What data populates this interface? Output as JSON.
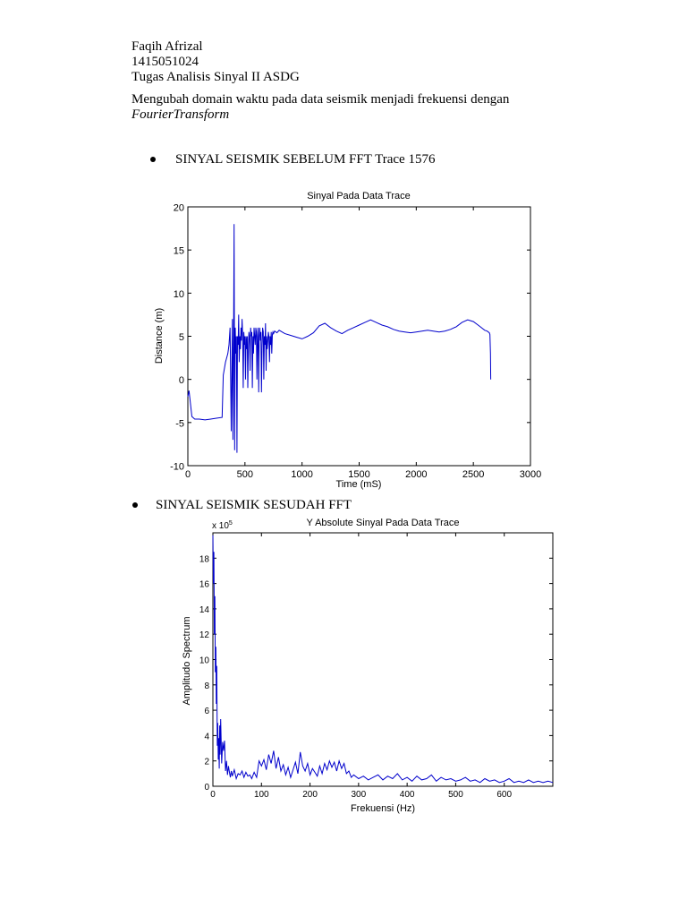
{
  "header": {
    "author": "Faqih Afrizal",
    "student_id": "1415051024",
    "course": "Tugas Analisis Sinyal II ASDG",
    "description": "Mengubah domain waktu pada data seismik menjadi frekuensi dengan",
    "method": "FourierTransform"
  },
  "section1": {
    "heading": "SINYAL SEISMIK SEBELUM FFT Trace 1576"
  },
  "section2": {
    "heading": "SINYAL SEISMIK SESUDAH FFT"
  },
  "colors": {
    "series": "#0000cc",
    "axis": "#000000"
  },
  "chart_data": [
    {
      "type": "line",
      "title": "Sinyal Pada Data Trace",
      "xlabel": "Time (mS)",
      "ylabel": "Distance (m)",
      "xlim": [
        0,
        3000
      ],
      "ylim": [
        -10,
        20
      ],
      "xticks": [
        0,
        500,
        1000,
        1500,
        2000,
        2500,
        3000
      ],
      "yticks": [
        -10,
        -5,
        0,
        5,
        10,
        15,
        20
      ],
      "series": [
        {
          "x": [
            0,
            10,
            20,
            35,
            60,
            100,
            150,
            200,
            250,
            300,
            310,
            330,
            350,
            360,
            370,
            380,
            390,
            395,
            400,
            405,
            410,
            415,
            420,
            425,
            430,
            435,
            440,
            445,
            450,
            455,
            460,
            465,
            470,
            475,
            480,
            485,
            490,
            495,
            500,
            505,
            510,
            515,
            520,
            525,
            530,
            535,
            540,
            545,
            550,
            555,
            560,
            565,
            570,
            575,
            580,
            585,
            590,
            595,
            600,
            605,
            610,
            615,
            620,
            625,
            630,
            635,
            640,
            645,
            650,
            655,
            660,
            665,
            670,
            675,
            680,
            685,
            690,
            695,
            700,
            705,
            710,
            715,
            720,
            725,
            730,
            735,
            740,
            745,
            750,
            760,
            780,
            800,
            850,
            900,
            950,
            1000,
            1050,
            1100,
            1150,
            1200,
            1250,
            1300,
            1350,
            1400,
            1450,
            1500,
            1550,
            1600,
            1650,
            1700,
            1750,
            1800,
            1850,
            1900,
            1950,
            2000,
            2050,
            2100,
            2150,
            2200,
            2250,
            2300,
            2350,
            2400,
            2450,
            2500,
            2550,
            2600,
            2620,
            2640,
            2645,
            2650,
            2652
          ],
          "values": [
            -2,
            -1.3,
            -2.5,
            -4.3,
            -4.6,
            -4.6,
            -4.7,
            -4.6,
            -4.5,
            -4.4,
            0.5,
            2,
            3,
            4,
            6,
            -6,
            7,
            -7,
            4,
            18,
            -8.2,
            6,
            3,
            5,
            -8.5,
            5,
            4,
            7.5,
            2,
            5,
            3.5,
            6,
            4.5,
            7,
            5,
            -1,
            5.5,
            4,
            5,
            0,
            5,
            3.5,
            5,
            -1,
            4,
            5.5,
            5,
            1,
            6,
            5,
            5.5,
            -1,
            5,
            3,
            6,
            5,
            4,
            6,
            5.5,
            0,
            5,
            6,
            -1.5,
            5,
            6,
            4.5,
            5.5,
            -1.5,
            4,
            6,
            5.5,
            0,
            5,
            4,
            6.5,
            1,
            5,
            3.5,
            4.5,
            5.5,
            5,
            2,
            5,
            4,
            5.5,
            3,
            5.2,
            5.5,
            5.3,
            5.6,
            5.4,
            5.7,
            5.3,
            5.1,
            4.9,
            4.7,
            5.0,
            5.4,
            6.2,
            6.5,
            6.0,
            5.6,
            5.3,
            5.7,
            6.0,
            6.3,
            6.6,
            6.9,
            6.6,
            6.3,
            6.1,
            5.8,
            5.6,
            5.5,
            5.4,
            5.5,
            5.6,
            5.7,
            5.6,
            5.5,
            5.6,
            5.8,
            6.1,
            6.6,
            6.9,
            6.7,
            6.2,
            5.7,
            5.6,
            5.4,
            5.2,
            3,
            0
          ]
        }
      ]
    },
    {
      "type": "line",
      "title": "Y Absolute Sinyal Pada Data Trace",
      "xlabel": "Frekuensi (Hz)",
      "ylabel": "Amplitudo Spectrum",
      "y_multiplier": "x 10",
      "y_multiplier_exp": "5",
      "xlim": [
        0,
        700
      ],
      "ylim": [
        0,
        20
      ],
      "xticks": [
        0,
        100,
        200,
        300,
        400,
        500,
        600
      ],
      "yticks": [
        0,
        2,
        4,
        6,
        8,
        10,
        12,
        14,
        16,
        18
      ],
      "series": [
        {
          "x": [
            0,
            1,
            2,
            3,
            4,
            5,
            6,
            7,
            8,
            9,
            10,
            11,
            12,
            13,
            14,
            15,
            16,
            18,
            20,
            22,
            24,
            26,
            28,
            30,
            32,
            34,
            36,
            38,
            40,
            44,
            48,
            52,
            56,
            60,
            64,
            68,
            72,
            76,
            80,
            85,
            90,
            95,
            100,
            105,
            110,
            115,
            120,
            125,
            130,
            135,
            140,
            145,
            150,
            155,
            160,
            165,
            170,
            175,
            180,
            185,
            190,
            195,
            200,
            205,
            210,
            215,
            220,
            225,
            230,
            235,
            240,
            245,
            250,
            255,
            260,
            265,
            270,
            275,
            280,
            285,
            290,
            300,
            310,
            320,
            330,
            340,
            350,
            360,
            370,
            380,
            390,
            400,
            410,
            420,
            430,
            440,
            450,
            460,
            470,
            480,
            490,
            500,
            510,
            520,
            530,
            540,
            550,
            560,
            570,
            580,
            590,
            600,
            610,
            620,
            630,
            640,
            650,
            660,
            670,
            680,
            690,
            700
          ],
          "values": [
            19.8,
            16,
            18.5,
            12,
            15,
            9,
            11,
            6.5,
            9.5,
            3.2,
            5,
            2.1,
            3.8,
            1.4,
            4.8,
            2.5,
            5.3,
            1.8,
            3.5,
            2.8,
            3.6,
            1.2,
            2.0,
            0.9,
            1.6,
            1.1,
            0.7,
            1.2,
            0.8,
            1.3,
            0.6,
            1.0,
            0.9,
            1.2,
            0.7,
            1.1,
            0.8,
            0.9,
            0.6,
            1.1,
            0.7,
            2.0,
            1.6,
            2.1,
            1.3,
            2.5,
            1.8,
            2.8,
            1.4,
            2.3,
            1.2,
            1.7,
            0.9,
            1.5,
            0.7,
            1.3,
            1.9,
            1.0,
            2.7,
            1.6,
            1.2,
            1.8,
            0.9,
            1.4,
            1.1,
            0.8,
            1.6,
            1.0,
            1.8,
            1.3,
            2.0,
            1.5,
            1.9,
            1.2,
            2.0,
            1.4,
            1.8,
            1.0,
            1.2,
            0.7,
            0.9,
            0.6,
            0.8,
            0.5,
            0.7,
            0.9,
            0.5,
            0.8,
            0.6,
            1.0,
            0.5,
            0.7,
            0.4,
            0.8,
            0.5,
            0.6,
            0.9,
            0.4,
            0.7,
            0.5,
            0.6,
            0.4,
            0.5,
            0.7,
            0.4,
            0.5,
            0.3,
            0.6,
            0.4,
            0.5,
            0.3,
            0.4,
            0.6,
            0.3,
            0.4,
            0.3,
            0.5,
            0.3,
            0.4,
            0.3,
            0.4,
            0.3
          ]
        }
      ]
    }
  ]
}
